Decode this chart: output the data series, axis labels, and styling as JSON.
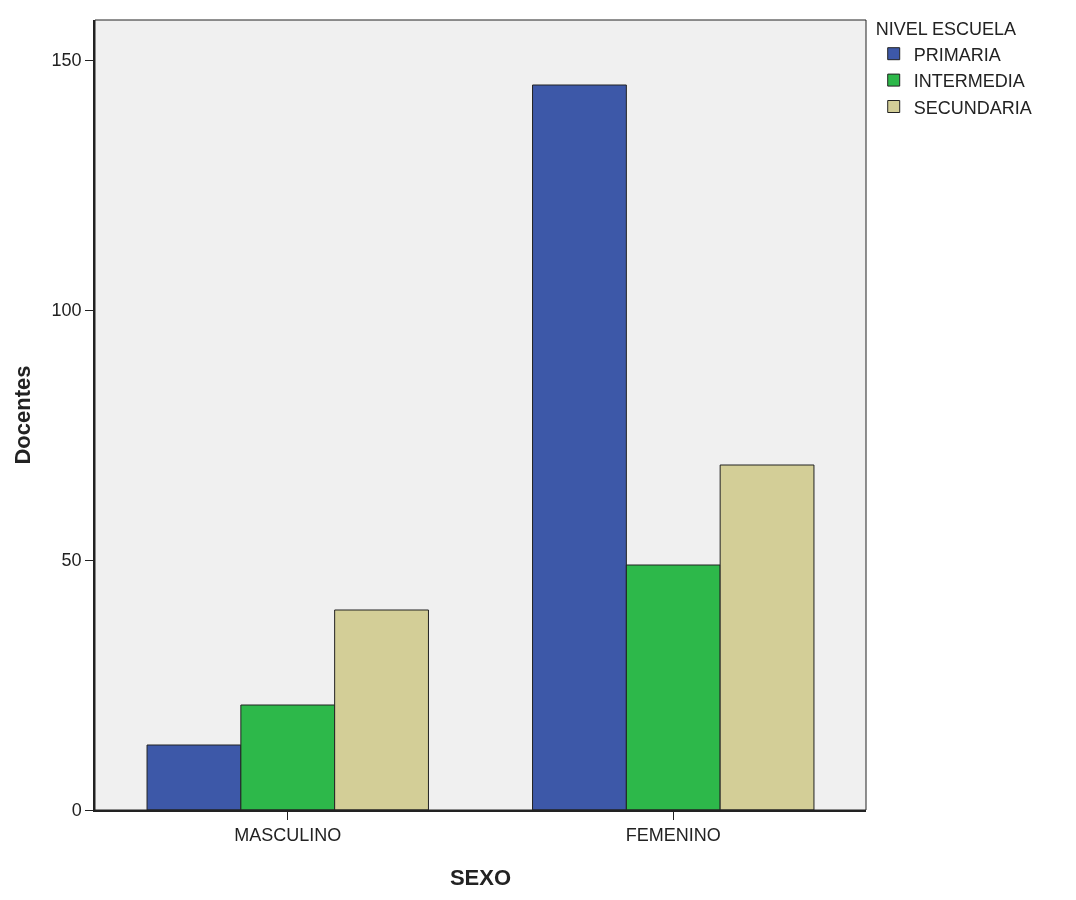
{
  "chart_data": {
    "type": "bar",
    "xlabel": "SEXO",
    "ylabel": "Docentes",
    "legend_title": "NIVEL ESCUELA",
    "categories": [
      "MASCULINO",
      "FEMENINO"
    ],
    "series": [
      {
        "name": "PRIMARIA",
        "color": "#3d58a8",
        "values": [
          13,
          145
        ]
      },
      {
        "name": "INTERMEDIA",
        "color": "#2db84a",
        "values": [
          21,
          49
        ]
      },
      {
        "name": "SECUNDARIA",
        "color": "#d3ce97",
        "values": [
          40,
          69
        ]
      }
    ],
    "ylim": [
      0,
      158
    ],
    "yticks": [
      0,
      50,
      100,
      150
    ],
    "grid": false,
    "legend": "top right"
  }
}
